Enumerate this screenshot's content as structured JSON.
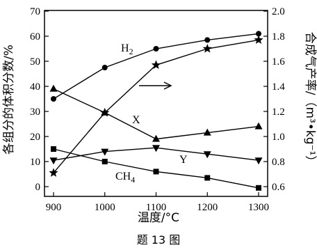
{
  "chart_data": {
    "type": "line",
    "title": "",
    "xlabel": "温度/°C",
    "ylabel_left": "各组分的体积分数/%",
    "ylabel_right": "合成气产率/（m³•kg⁻¹）",
    "caption": "题 13 图",
    "x": [
      900,
      1000,
      1100,
      1200,
      1300
    ],
    "xlim": [
      900,
      1300
    ],
    "ylim_left": [
      0,
      70
    ],
    "ylim_right": [
      0.6,
      2.0
    ],
    "left_ticks": [
      0,
      10,
      20,
      30,
      40,
      50,
      60,
      70
    ],
    "right_ticks": [
      "0.6",
      "0.8",
      "1.0",
      "1.2",
      "1.4",
      "1.6",
      "1.8",
      "2.0"
    ],
    "grid": false,
    "series": [
      {
        "name": "H₂",
        "axis": "left",
        "marker": "circle",
        "values": [
          35,
          47.5,
          55,
          58.5,
          61
        ]
      },
      {
        "name": "X",
        "axis": "left",
        "marker": "triangle-up",
        "values": [
          39,
          29.5,
          19,
          21.5,
          24
        ]
      },
      {
        "name": "Y",
        "axis": "left",
        "marker": "triangle-down",
        "values": [
          10.5,
          14,
          15.5,
          13,
          10.5
        ]
      },
      {
        "name": "CH₄",
        "axis": "left",
        "marker": "square",
        "values": [
          15,
          10,
          6,
          3.5,
          -0.5
        ]
      },
      {
        "name": "",
        "axis": "right",
        "marker": "star",
        "values": [
          0.71,
          1.19,
          1.57,
          1.7,
          1.77
        ]
      }
    ],
    "arrow_direction": "right"
  }
}
